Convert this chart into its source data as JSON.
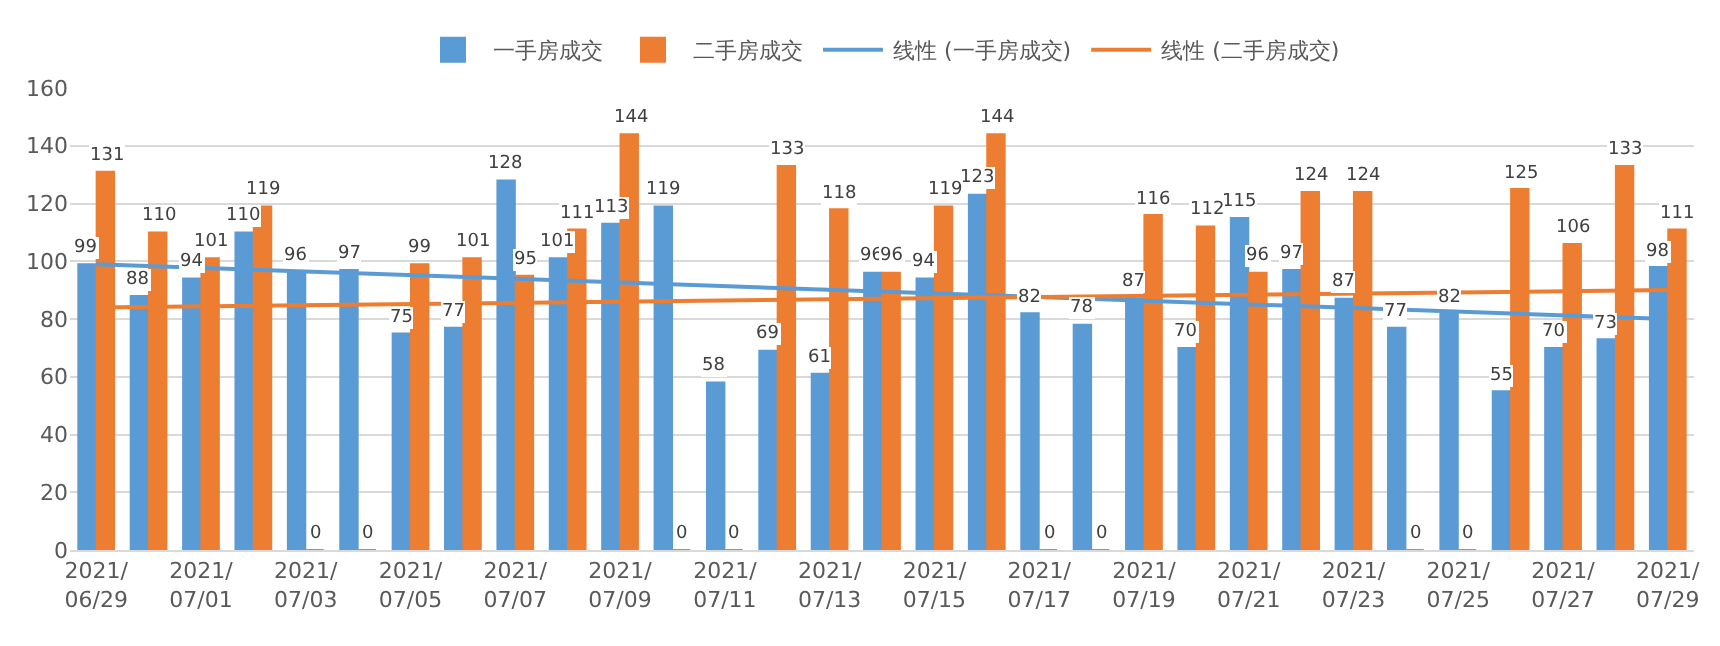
{
  "chart_data": {
    "type": "bar",
    "categories": [
      "2021/06/29",
      null,
      "2021/07/01",
      null,
      "2021/07/03",
      null,
      "2021/07/05",
      null,
      "2021/07/07",
      null,
      "2021/07/09",
      null,
      "2021/07/11",
      null,
      "2021/07/13",
      null,
      "2021/07/15",
      null,
      "2021/07/17",
      null,
      "2021/07/19",
      null,
      "2021/07/21",
      null,
      "2021/07/23",
      null,
      "2021/07/25",
      null,
      "2021/07/27",
      null,
      "2021/07/29"
    ],
    "series": [
      {
        "name": "一手房成交",
        "color": "#5b9bd5",
        "values": [
          99,
          88,
          94,
          110,
          96,
          97,
          75,
          77,
          128,
          101,
          113,
          119,
          58,
          69,
          61,
          96,
          94,
          123,
          82,
          78,
          87,
          70,
          115,
          97,
          87,
          77,
          82,
          55,
          70,
          73,
          98
        ],
        "value_labels": [
          "99",
          "88",
          "94",
          "110",
          "96",
          "97",
          "75",
          "77",
          "128",
          "101",
          "113",
          "119",
          "58",
          "69",
          "61",
          "96",
          "94",
          "123",
          "82",
          "78",
          "87",
          "70",
          "115",
          "97",
          "87",
          "77",
          "82",
          "55",
          "70",
          "73",
          "98"
        ]
      },
      {
        "name": "二手房成交",
        "color": "#ed7d31",
        "values": [
          131,
          110,
          101,
          119,
          0,
          0,
          99,
          101,
          95,
          111,
          144,
          0,
          0,
          133,
          118,
          96,
          119,
          144,
          0,
          0,
          116,
          112,
          96,
          124,
          124,
          0,
          0,
          125,
          106,
          133,
          111
        ],
        "value_labels": [
          "131",
          "110",
          "101",
          "119",
          "0",
          "0",
          "99",
          "101",
          "95",
          "111",
          "144",
          "0",
          "0",
          "133",
          "118",
          "96",
          "119",
          "144",
          "0",
          "0",
          "116",
          "112",
          "96",
          "124",
          "124",
          "0",
          "0",
          "125",
          "106",
          "133",
          "111"
        ]
      },
      {
        "name": "线性 (一手房成交)",
        "type": "line",
        "color": "#5b9bd5",
        "x": [
          "2021/06/29",
          "2021/07/29"
        ],
        "values": [
          99,
          80
        ]
      },
      {
        "name": "线性 (二手房成交)",
        "type": "line",
        "color": "#ed7d31",
        "x": [
          "2021/06/29",
          "2021/07/29"
        ],
        "values": [
          84,
          90
        ]
      }
    ],
    "ylim": [
      0,
      160
    ],
    "yticks": [
      0,
      20,
      40,
      60,
      80,
      100,
      120,
      140,
      160
    ],
    "grid": "y",
    "legend": "top"
  }
}
